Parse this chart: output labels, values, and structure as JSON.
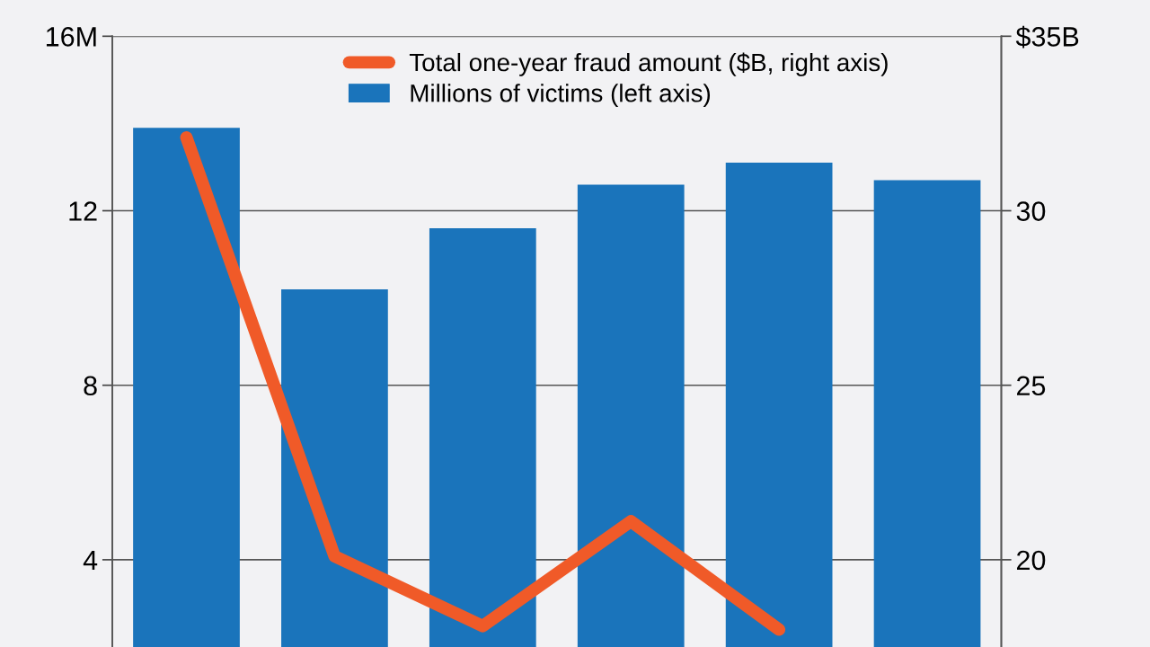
{
  "chart_data": {
    "type": "bar",
    "categories": [
      null,
      null,
      null,
      null,
      null,
      null
    ],
    "series": [
      {
        "name": "Total one-year fraud amount ($B, right axis)",
        "type": "line",
        "axis": "y2",
        "color": "#f05a28",
        "values": [
          32.1,
          20.1,
          18.1,
          21.1,
          18.0,
          null
        ]
      },
      {
        "name": "Millions of victims (left axis)",
        "color": "#1a74bb",
        "values": [
          13.9,
          10.2,
          11.6,
          12.6,
          13.1,
          12.7
        ]
      }
    ],
    "ylim": [
      2,
      16
    ],
    "yticks": [
      4,
      8,
      12,
      {
        "value": 16,
        "label": "16M"
      }
    ],
    "y2lim": [
      17.5,
      35
    ],
    "y2ticks": [
      20,
      25,
      30,
      {
        "value": 35,
        "label": "$35B"
      }
    ],
    "grid": "y",
    "legend": "top",
    "line_style": "solid"
  }
}
